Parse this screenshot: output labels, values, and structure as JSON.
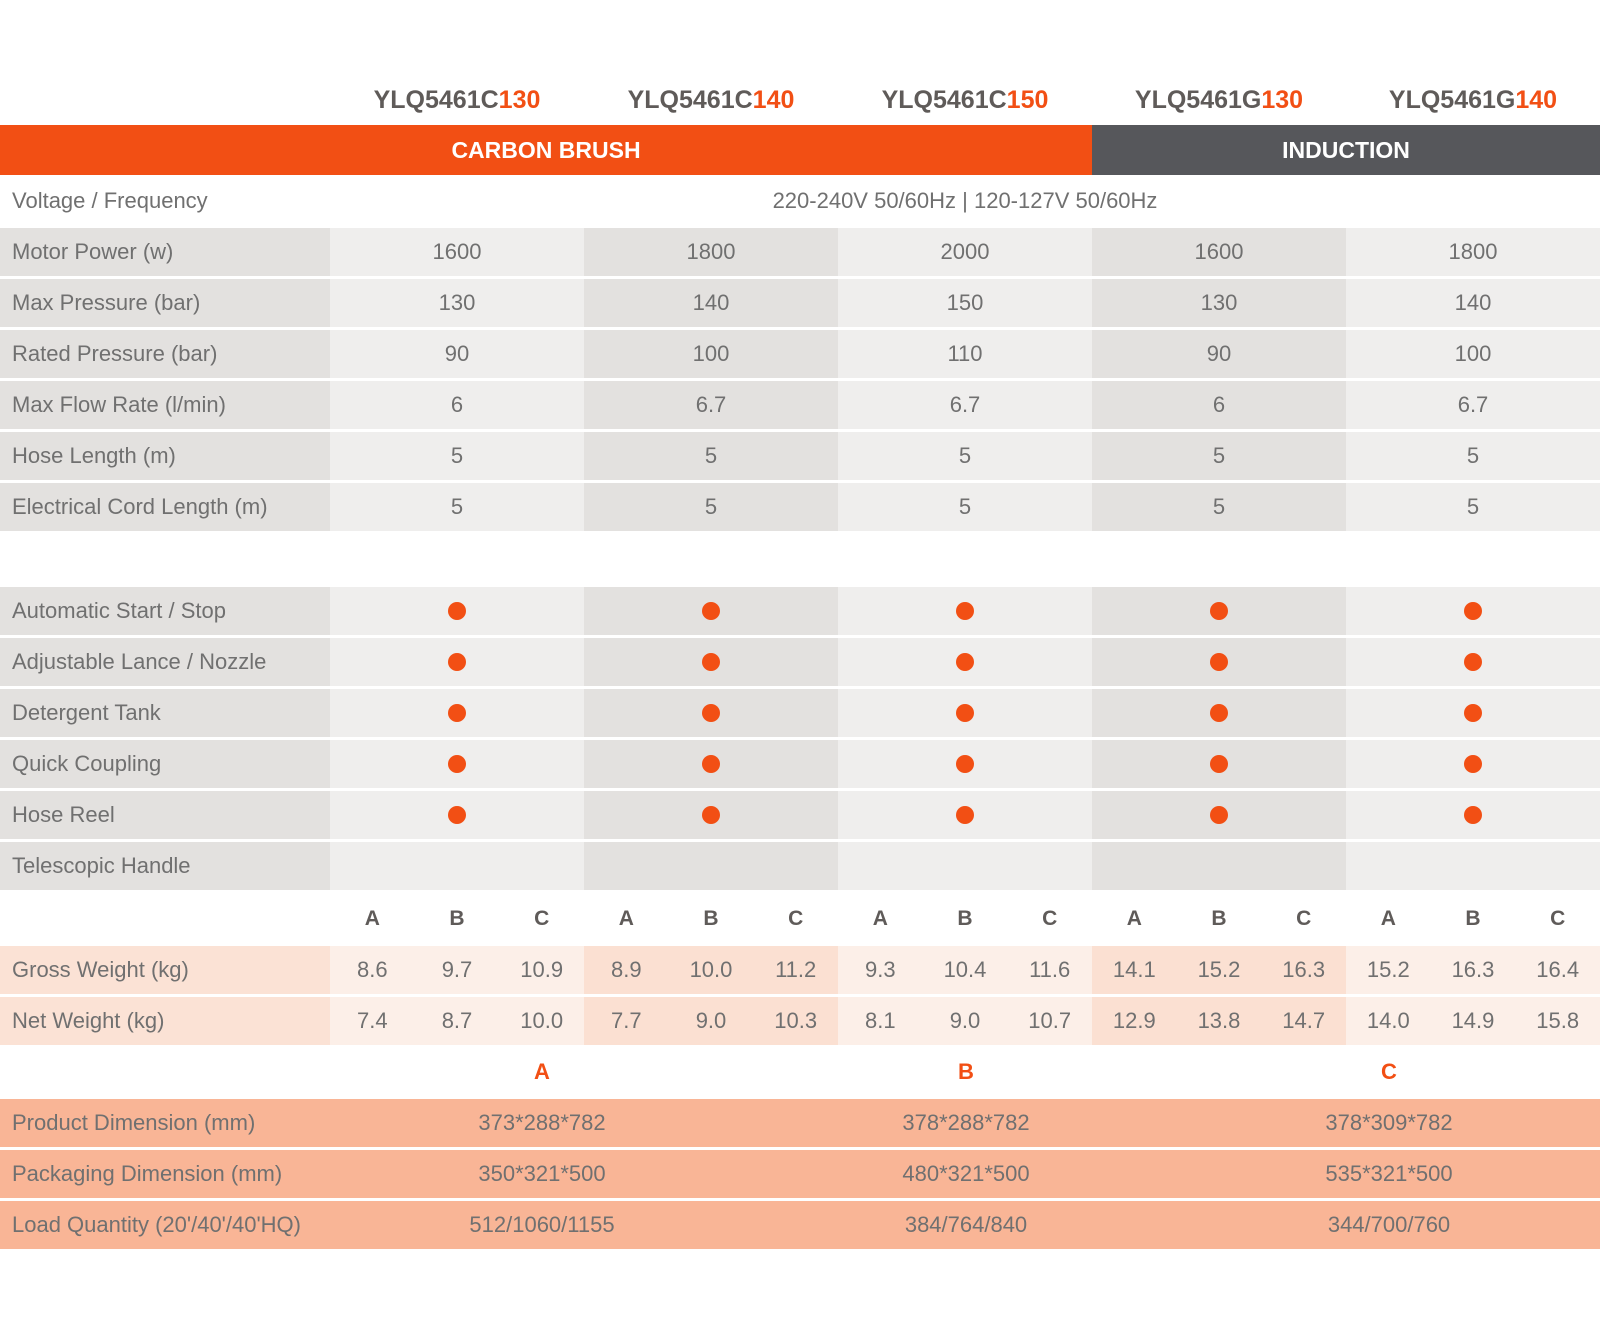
{
  "models": [
    {
      "prefix": "YLQ5461C",
      "suffix": "130"
    },
    {
      "prefix": "YLQ5461C",
      "suffix": "140"
    },
    {
      "prefix": "YLQ5461C",
      "suffix": "150"
    },
    {
      "prefix": "YLQ5461G",
      "suffix": "130"
    },
    {
      "prefix": "YLQ5461G",
      "suffix": "140"
    }
  ],
  "groups": {
    "carbon": "CARBON BRUSH",
    "induction": "INDUCTION"
  },
  "voltage": {
    "label": "Voltage / Frequency",
    "value": "220-240V 50/60Hz | 120-127V 50/60Hz"
  },
  "specs": [
    {
      "label": "Motor Power (w)",
      "values": [
        "1600",
        "1800",
        "2000",
        "1600",
        "1800"
      ]
    },
    {
      "label": "Max Pressure (bar)",
      "values": [
        "130",
        "140",
        "150",
        "130",
        "140"
      ]
    },
    {
      "label": "Rated Pressure (bar)",
      "values": [
        "90",
        "100",
        "110",
        "90",
        "100"
      ]
    },
    {
      "label": "Max Flow Rate (l/min)",
      "values": [
        "6",
        "6.7",
        "6.7",
        "6",
        "6.7"
      ]
    },
    {
      "label": "Hose Length (m)",
      "values": [
        "5",
        "5",
        "5",
        "5",
        "5"
      ]
    },
    {
      "label": "Electrical Cord Length (m)",
      "values": [
        "5",
        "5",
        "5",
        "5",
        "5"
      ]
    }
  ],
  "features": [
    {
      "label": "Automatic Start / Stop",
      "has": [
        true,
        true,
        true,
        true,
        true
      ]
    },
    {
      "label": "Adjustable Lance / Nozzle",
      "has": [
        true,
        true,
        true,
        true,
        true
      ]
    },
    {
      "label": "Detergent Tank",
      "has": [
        true,
        true,
        true,
        true,
        true
      ]
    },
    {
      "label": "Quick Coupling",
      "has": [
        true,
        true,
        true,
        true,
        true
      ]
    },
    {
      "label": "Hose Reel",
      "has": [
        true,
        true,
        true,
        true,
        true
      ]
    },
    {
      "label": "Telescopic Handle",
      "has": [
        false,
        false,
        false,
        false,
        false
      ]
    }
  ],
  "variants": [
    "A",
    "B",
    "C"
  ],
  "weights": [
    {
      "label": "Gross Weight (kg)",
      "values": [
        "8.6",
        "9.7",
        "10.9",
        "8.9",
        "10.0",
        "11.2",
        "9.3",
        "10.4",
        "11.6",
        "14.1",
        "15.2",
        "16.3",
        "15.2",
        "16.3",
        "16.4"
      ]
    },
    {
      "label": "Net Weight (kg)",
      "values": [
        "7.4",
        "8.7",
        "10.0",
        "7.7",
        "9.0",
        "10.3",
        "8.1",
        "9.0",
        "10.7",
        "12.9",
        "13.8",
        "14.7",
        "14.0",
        "14.9",
        "15.8"
      ]
    }
  ],
  "dimensions": [
    {
      "label": "Product Dimension (mm)",
      "values": [
        "373*288*782",
        "378*288*782",
        "378*309*782"
      ]
    },
    {
      "label": "Packaging Dimension (mm)",
      "values": [
        "350*321*500",
        "480*321*500",
        "535*321*500"
      ]
    },
    {
      "label": "Load Quantity (20'/40'/40'HQ)",
      "values": [
        "512/1060/1155",
        "384/764/840",
        "344/700/760"
      ]
    }
  ],
  "colors": {
    "accent": "#f24f14",
    "induction": "#56575b",
    "dot": "#f24f14"
  }
}
